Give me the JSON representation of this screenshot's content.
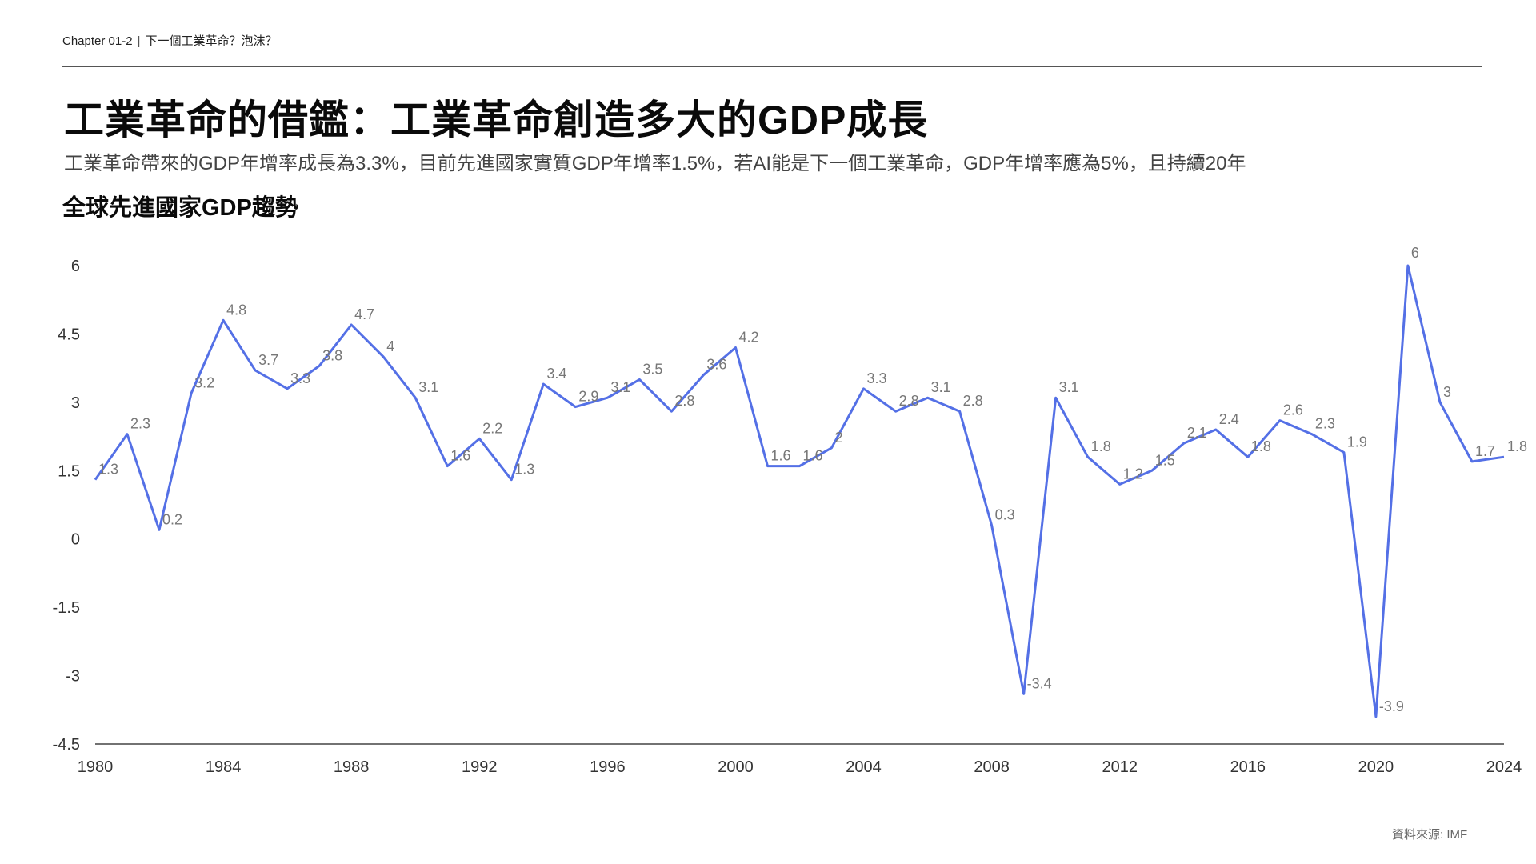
{
  "header": {
    "chapter": "Chapter 01-2",
    "chapter_sep": "|",
    "chapter_topic": "下一個工業革命？泡沫？"
  },
  "main_title": "工業革命的借鑑：工業革命創造多大的GDP成長",
  "subtitle": "工業革命帶來的GDP年增率成長為3.3%，目前先進國家實質GDP年增率1.5%，若AI能是下一個工業革命，GDP年增率應為5%，且持續20年",
  "source": "資料來源: IMF",
  "colors": {
    "line": "#5470e6",
    "axis": "#444444",
    "label": "#777777"
  },
  "chart_data": {
    "type": "line",
    "title": "全球先進國家GDP趨勢",
    "xlabel": "",
    "ylabel": "",
    "ylim": [
      -4.5,
      6
    ],
    "xlim": [
      1980,
      2024
    ],
    "y_ticks": [
      "6",
      "4.5",
      "3",
      "1.5",
      "0",
      "-1.5",
      "-3",
      "-4.5"
    ],
    "x_ticks": [
      "1980",
      "1984",
      "1988",
      "1992",
      "1996",
      "2000",
      "2004",
      "2008",
      "2012",
      "2016",
      "2020",
      "2024"
    ],
    "grid": false,
    "x": [
      1980,
      1981,
      1982,
      1983,
      1984,
      1985,
      1986,
      1987,
      1988,
      1989,
      1990,
      1991,
      1992,
      1993,
      1994,
      1995,
      1996,
      1997,
      1998,
      1999,
      2000,
      2001,
      2002,
      2003,
      2004,
      2005,
      2006,
      2007,
      2008,
      2009,
      2010,
      2011,
      2012,
      2013,
      2014,
      2015,
      2016,
      2017,
      2018,
      2019,
      2020,
      2021,
      2022,
      2023,
      2024
    ],
    "series": [
      {
        "values": [
          1.3,
          2.3,
          0.2,
          3.2,
          4.8,
          3.7,
          3.3,
          3.8,
          4.7,
          4,
          3.1,
          1.6,
          2.2,
          1.3,
          3.4,
          2.9,
          3.1,
          3.5,
          2.8,
          3.6,
          4.2,
          1.6,
          1.6,
          2,
          3.3,
          2.8,
          3.1,
          2.8,
          0.3,
          -3.4,
          3.1,
          1.8,
          1.2,
          1.5,
          2.1,
          2.4,
          1.8,
          2.6,
          2.3,
          1.9,
          -3.9,
          6,
          3,
          1.7,
          1.8
        ],
        "data_labels": [
          "1.3",
          "2.3",
          "0.2",
          "3.2",
          "4.8",
          "3.7",
          "3.3",
          "3.8",
          "4.7",
          "4",
          "3.1",
          "1.6",
          "2.2",
          "1.3",
          "3.4",
          "2.9",
          "3.1",
          "3.5",
          "2.8",
          "3.6",
          "4.2",
          "1.6",
          "1.6",
          "2",
          "3.3",
          "2.8",
          "3.1",
          "2.8",
          "0.3",
          "-3.4",
          "3.1",
          "1.8",
          "1.2",
          "1.5",
          "2.1",
          "2.4",
          "1.8",
          "2.6",
          "2.3",
          "1.9",
          "-3.9",
          "6",
          "3",
          "1.7",
          "1.8"
        ]
      }
    ]
  }
}
